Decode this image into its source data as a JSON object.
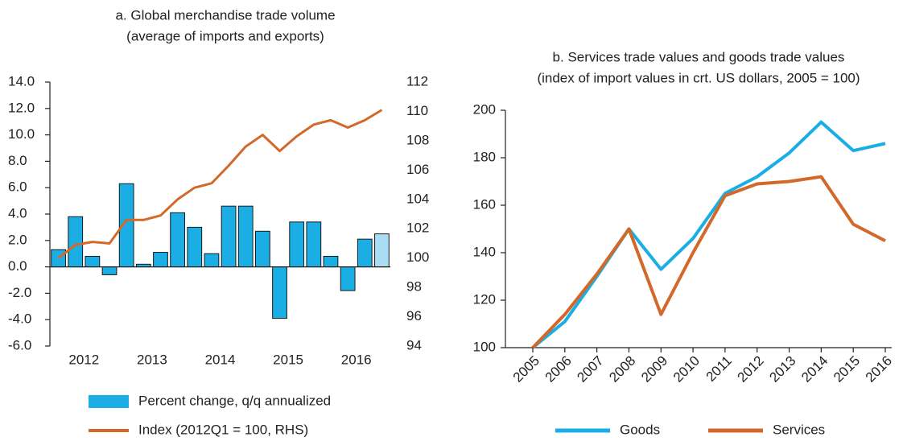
{
  "chart_data": [
    {
      "type": "combo",
      "title": "a. Global merchandise trade volume",
      "subtitle": "(average of imports and exports)",
      "categories": [
        null,
        "2012",
        null,
        null,
        null,
        "2013",
        null,
        null,
        null,
        "2014",
        null,
        null,
        null,
        "2015",
        null,
        null,
        null,
        "2016",
        null,
        null
      ],
      "series": [
        {
          "name": "Percent change, q/q annualized",
          "type": "bar",
          "color": "#1aaee5",
          "bar_colors": [
            "#1aaee5",
            "#1aaee5",
            "#1aaee5",
            "#1aaee5",
            "#1aaee5",
            "#1aaee5",
            "#1aaee5",
            "#1aaee5",
            "#1aaee5",
            "#1aaee5",
            "#1aaee5",
            "#1aaee5",
            "#1aaee5",
            "#1aaee5",
            "#1aaee5",
            "#1aaee5",
            "#1aaee5",
            "#1aaee5",
            "#1aaee5",
            "#a8ddf3"
          ],
          "values": [
            1.3,
            3.8,
            0.8,
            -0.6,
            6.3,
            0.2,
            1.1,
            4.1,
            3.0,
            1.0,
            4.6,
            4.6,
            2.7,
            -3.9,
            3.4,
            3.4,
            0.8,
            -1.8,
            2.1,
            2.5
          ]
        },
        {
          "name": "Index (2012Q1 = 100, RHS)",
          "type": "line",
          "axis": "y2",
          "color": "#d2692a",
          "values": [
            100.0,
            100.9,
            101.1,
            101.0,
            102.6,
            102.6,
            102.9,
            104.0,
            104.8,
            105.1,
            106.3,
            107.6,
            108.4,
            107.3,
            108.3,
            109.1,
            109.4,
            108.9,
            109.4,
            110.1
          ]
        }
      ],
      "ylim": [
        -6,
        14
      ],
      "yticks": [
        {
          "value": -6,
          "label": "-6.0"
        },
        {
          "value": -4,
          "label": "-4.0"
        },
        {
          "value": -2,
          "label": "-2.0"
        },
        {
          "value": 0,
          "label": "0.0"
        },
        {
          "value": 2,
          "label": "2.0"
        },
        {
          "value": 4,
          "label": "4.0"
        },
        {
          "value": 6,
          "label": "6.0"
        },
        {
          "value": 8,
          "label": "8.0"
        },
        {
          "value": 10,
          "label": "10.0"
        },
        {
          "value": 12,
          "label": "12.0"
        },
        {
          "value": 14,
          "label": "14.0"
        }
      ],
      "y2lim": [
        94,
        112
      ],
      "y2ticks": [
        94,
        96,
        98,
        100,
        102,
        104,
        106,
        108,
        110,
        112
      ]
    },
    {
      "type": "line",
      "title": "b. Services trade values and goods trade values",
      "subtitle": "(index of import values in crt. US dollars, 2005 = 100)",
      "categories": [
        "2005",
        "2006",
        "2007",
        "2008",
        "2009",
        "2010",
        "2011",
        "2012",
        "2013",
        "2014",
        "2015",
        "2016"
      ],
      "series": [
        {
          "name": "Goods",
          "color": "#1aaee5",
          "values": [
            100,
            111,
            130,
            150,
            133,
            146,
            165,
            172,
            182,
            195,
            183,
            186
          ]
        },
        {
          "name": "Services",
          "color": "#d2692a",
          "values": [
            100,
            114,
            131,
            150,
            114,
            140,
            164,
            169,
            170,
            172,
            152,
            145
          ]
        }
      ],
      "ylim": [
        100,
        200
      ],
      "yticks": [
        100,
        120,
        140,
        160,
        180,
        200
      ]
    }
  ]
}
